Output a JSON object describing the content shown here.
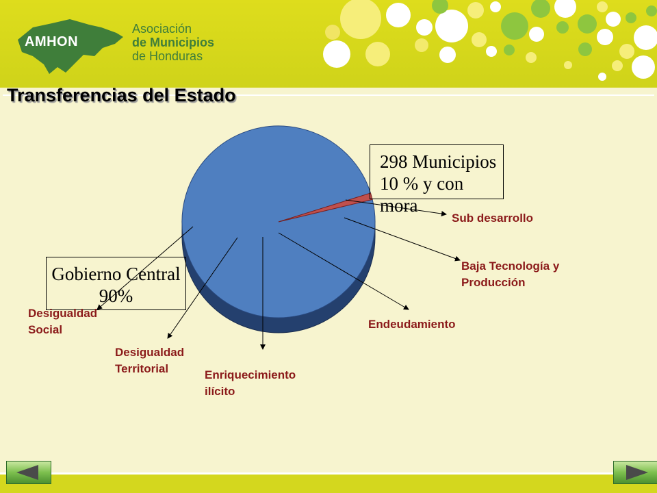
{
  "header": {
    "logo_text": "AMHON",
    "org_line1": "Asociación",
    "org_line2": "de Municipios",
    "org_line3": "de Honduras"
  },
  "slide": {
    "title": "Transferencias del Estado"
  },
  "pie": {
    "municipios_line1": "298 Municipios",
    "municipios_line2": "10 % y con mora",
    "gobierno_line1": "Gobierno Central",
    "gobierno_line2": "90%"
  },
  "labels": {
    "sub_desarrollo": "Sub desarrollo",
    "baja_tecnologia_1": "Baja Tecnología y",
    "baja_tecnologia_2": "Producción",
    "endeudamiento": "Endeudamiento",
    "enriquecimiento_1": "Enriquecimiento",
    "enriquecimiento_2": "ilícito",
    "desig_territorial_1": "Desigualdad",
    "desig_territorial_2": "Territorial",
    "desig_social_1": "Desigualdad",
    "desig_social_2": "Social"
  },
  "colors": {
    "pie_main": "#4f7fc0",
    "pie_side": "#24406e",
    "pie_slice": "#c0504d",
    "label": "#8b1a1a",
    "header": "#d8da1d"
  },
  "chart_data": {
    "type": "pie",
    "categories": [
      "Gobierno Central",
      "298 Municipios"
    ],
    "values": [
      90,
      10
    ]
  },
  "nav": {
    "prev_icon": "triangle-left-icon",
    "next_icon": "triangle-right-icon"
  }
}
